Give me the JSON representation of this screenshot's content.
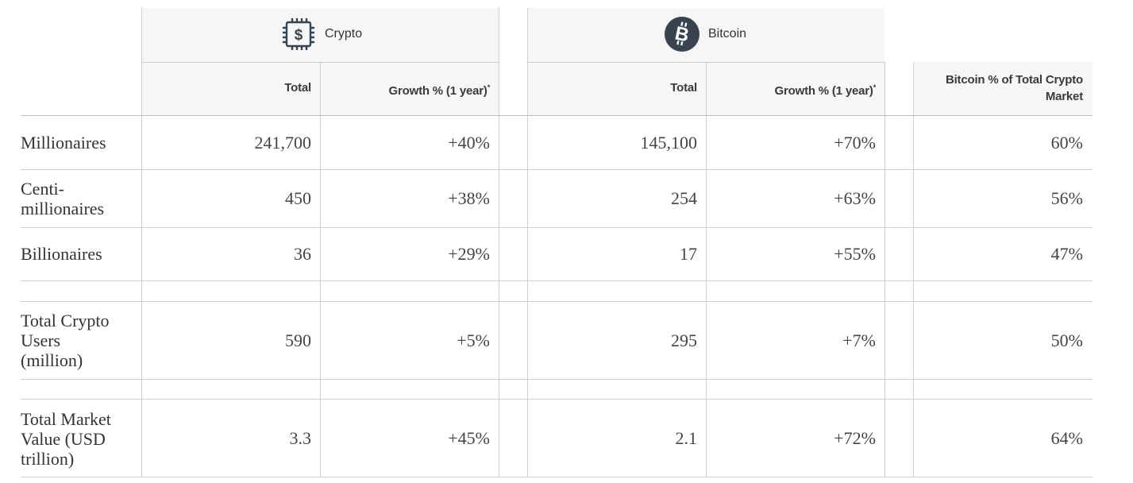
{
  "chart_data": {
    "type": "table",
    "groups": [
      {
        "name": "Crypto",
        "icon": "dollar-chip-icon"
      },
      {
        "name": "Bitcoin",
        "icon": "bitcoin-icon"
      }
    ],
    "columns": [
      {
        "group": "Crypto",
        "label": "Total"
      },
      {
        "group": "Crypto",
        "label": "Growth % (1 year)",
        "mark": "*"
      },
      {
        "group": "Bitcoin",
        "label": "Total"
      },
      {
        "group": "Bitcoin",
        "label": "Growth % (1 year)",
        "mark": "*"
      },
      {
        "group": "",
        "label": "Bitcoin % of Total Crypto Market"
      }
    ],
    "rows": [
      {
        "label": "Millionaires",
        "values": [
          "241,700",
          "+40%",
          "145,100",
          "+70%",
          "60%"
        ]
      },
      {
        "label": "Centi-millionaires",
        "values": [
          "450",
          "+38%",
          "254",
          "+63%",
          "56%"
        ]
      },
      {
        "label": "Billionaires",
        "values": [
          "36",
          "+29%",
          "17",
          "+55%",
          "47%"
        ]
      },
      {
        "label": "Total Crypto Users (million)",
        "values": [
          "590",
          "+5%",
          "295",
          "+7%",
          "50%"
        ]
      },
      {
        "label": "Total Market Value (USD trillion)",
        "values": [
          "3.3",
          "+45%",
          "2.1",
          "+72%",
          "64%"
        ]
      }
    ],
    "colors": {
      "icon": "#37444f",
      "header_bg": "#f6f6f6",
      "grid": "#cfcfcf",
      "text": "#333333"
    }
  }
}
